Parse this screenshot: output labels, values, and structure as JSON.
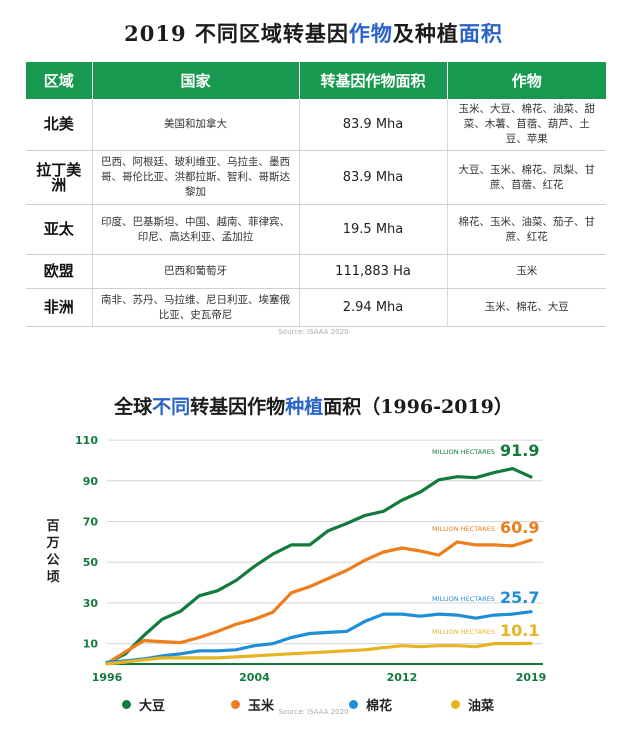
{
  "table": {
    "title_prefix": "2019 不同区域转基因",
    "title_highlight1": "作物",
    "title_mid": "及种植",
    "title_highlight2": "面积",
    "headers": [
      "区域",
      "国家",
      "转基因作物面积",
      "作物"
    ],
    "rows": [
      {
        "region": "北美",
        "countries": "美国和加拿大",
        "area": "83.9 Mha",
        "crops": "玉米、大豆、棉花、油菜、甜菜、木薯、苜蓿、葫芦、土豆、苹果"
      },
      {
        "region": "拉丁美洲",
        "countries": "巴西、阿根廷、玻利维亚、乌拉圭、墨西哥、哥伦比亚、洪都拉斯、智利、哥斯达黎加",
        "area": "83.9 Mha",
        "crops": "大豆、玉米、棉花、凤梨、甘蔗、苜蓿、红花"
      },
      {
        "region": "亚太",
        "countries": "印度、巴基斯坦、中国、越南、菲律宾、印尼、高达利亚、孟加拉",
        "area": "19.5 Mha",
        "crops": "棉花、玉米、油菜、茄子、甘蔗、红花"
      },
      {
        "region": "欧盟",
        "countries": "巴西和葡萄牙",
        "area": "111,883 Ha",
        "crops": "玉米"
      },
      {
        "region": "非洲",
        "countries": "南非、苏丹、马拉维、尼日利亚、埃塞俄比亚、史瓦帝尼",
        "area": "2.94 Mha",
        "crops": "玉米、棉花、大豆"
      }
    ],
    "source": "Source:   ISAAA 2020"
  },
  "chart_title": {
    "prefix": "全球",
    "highlight1": "不同",
    "mid": "转基因作物",
    "highlight2": "种植",
    "suffix": "面积（1996-2019）"
  },
  "chart_source": "Source:   ISAAA 2020",
  "chart_data": {
    "type": "line",
    "title": "全球不同转基因作物种植面积（1996-2019）",
    "xlabel": "",
    "ylabel": "百万公顷",
    "x": [
      1996,
      1997,
      1998,
      1999,
      2000,
      2001,
      2002,
      2003,
      2004,
      2005,
      2006,
      2007,
      2008,
      2009,
      2010,
      2011,
      2012,
      2013,
      2014,
      2015,
      2016,
      2017,
      2018,
      2019
    ],
    "xticks": [
      1996,
      2004,
      2012,
      2019
    ],
    "yticks": [
      10,
      30,
      50,
      70,
      90,
      110
    ],
    "ylim": [
      0,
      112
    ],
    "unit_label": "MILLION HECTARES",
    "series": [
      {
        "name": "大豆",
        "color": "#137a3e",
        "end_label": "91.9",
        "values": [
          0.5,
          5,
          14,
          22,
          26,
          33.5,
          36,
          41,
          48,
          54,
          58.5,
          58.5,
          65.5,
          69,
          73,
          75,
          80.5,
          84.5,
          90.5,
          92,
          91.5,
          94,
          96,
          91.9
        ]
      },
      {
        "name": "玉米",
        "color": "#ee7d1c",
        "end_label": "60.9",
        "values": [
          0.3,
          6,
          11.5,
          11,
          10.5,
          13,
          16,
          19.5,
          22,
          25.5,
          35,
          38,
          42,
          46,
          51,
          55,
          57,
          55.5,
          53.5,
          60,
          58.5,
          58.5,
          58,
          60.9
        ]
      },
      {
        "name": "棉花",
        "color": "#1e8fd6",
        "end_label": "25.7",
        "values": [
          0.8,
          1.5,
          2.5,
          4,
          5,
          6.5,
          6.5,
          7,
          9,
          10,
          13,
          15,
          15.5,
          16,
          21,
          24.5,
          24.5,
          23.5,
          24.5,
          24,
          22.5,
          24,
          24.5,
          25.7
        ]
      },
      {
        "name": "油菜",
        "color": "#e6b41f",
        "end_label": "10.1",
        "values": [
          0.1,
          1,
          2,
          3,
          3,
          3,
          3,
          3.5,
          4,
          4.5,
          5,
          5.5,
          6,
          6.5,
          7,
          8,
          9,
          8.5,
          9,
          9,
          8.5,
          10,
          10,
          10.1
        ]
      }
    ]
  }
}
